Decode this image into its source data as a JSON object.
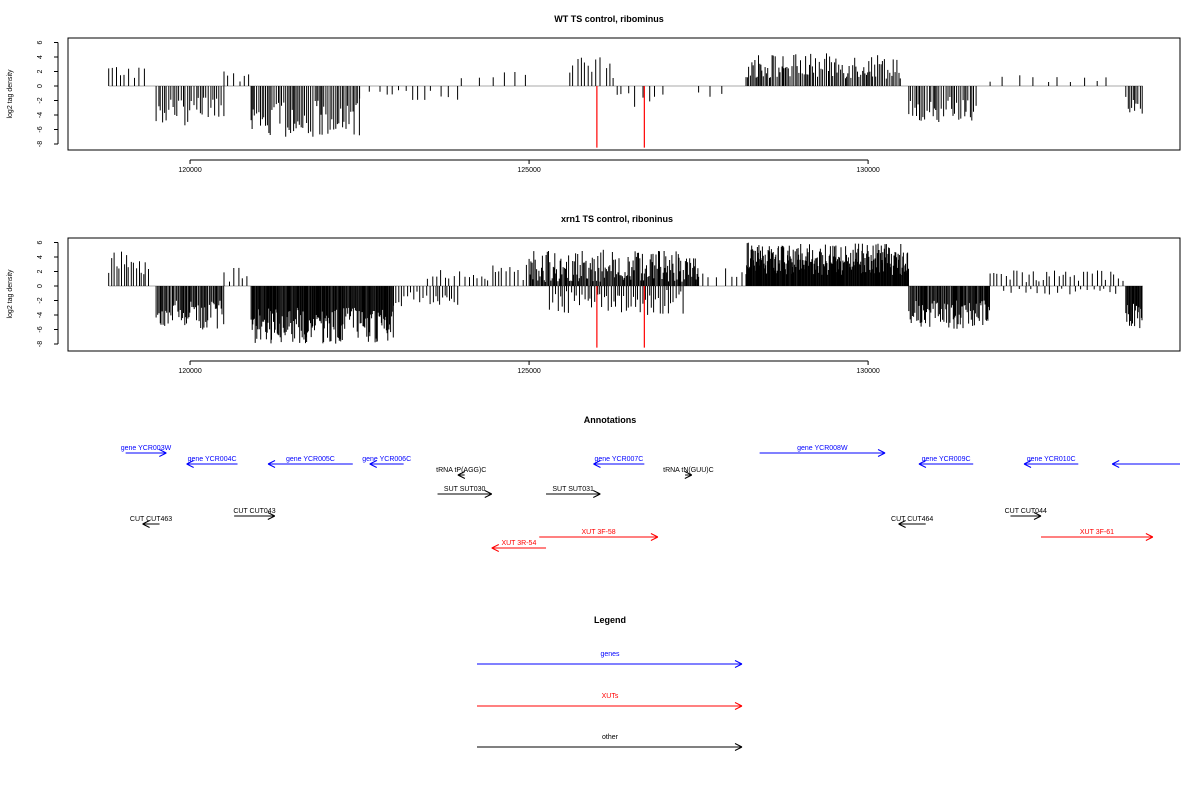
{
  "chart_data": [
    {
      "type": "bar",
      "title": "WT TS control, ribominus",
      "ylabel": "log2 tag density",
      "xlabel": "",
      "xlim": [
        118200,
        134600
      ],
      "ylim": [
        -9,
        6.5
      ],
      "x_ticks": [
        120000,
        125000,
        130000
      ],
      "x_tick_labels": [
        "120000",
        "125000",
        "130000"
      ],
      "y_ticks": [
        -8,
        -6,
        -4,
        -2,
        0,
        2,
        4,
        6
      ],
      "y_tick_labels": [
        "-8",
        "-6",
        "-4",
        "-2",
        "0",
        "2",
        "4",
        "6"
      ],
      "grid": false,
      "markers": [
        {
          "x": 126000,
          "value": -8.5,
          "color": "#ff0000"
        },
        {
          "x": 126700,
          "value": -8.5,
          "color": "#ff0000"
        }
      ],
      "segments": [
        {
          "from": 118800,
          "to": 119350,
          "min": 1,
          "max": 3,
          "dir": 1,
          "step": 70
        },
        {
          "from": 119500,
          "to": 120500,
          "min": 1.5,
          "max": 5.5,
          "dir": -1,
          "step": 30
        },
        {
          "from": 120500,
          "to": 120900,
          "min": 0.5,
          "max": 2,
          "dir": 1,
          "step": 80
        },
        {
          "from": 120900,
          "to": 122500,
          "min": 2,
          "max": 7,
          "dir": -1,
          "step": 25
        },
        {
          "from": 122500,
          "to": 124000,
          "min": 0.5,
          "max": 2,
          "dir": -1,
          "step": 120
        },
        {
          "from": 124000,
          "to": 125000,
          "min": 0.5,
          "max": 2,
          "dir": 1,
          "step": 200
        },
        {
          "from": 125600,
          "to": 126300,
          "min": 1,
          "max": 4,
          "dir": 1,
          "step": 70
        },
        {
          "from": 126300,
          "to": 127000,
          "min": 1,
          "max": 3,
          "dir": -1,
          "step": 90
        },
        {
          "from": 127500,
          "to": 128000,
          "min": 0.5,
          "max": 1.5,
          "dir": -1,
          "step": 160
        },
        {
          "from": 128200,
          "to": 130500,
          "min": 1,
          "max": 4.5,
          "dir": 1,
          "step": 22
        },
        {
          "from": 130600,
          "to": 131600,
          "min": 1.5,
          "max": 5,
          "dir": -1,
          "step": 28
        },
        {
          "from": 131800,
          "to": 133600,
          "min": 0.5,
          "max": 1.8,
          "dir": 1,
          "step": 190
        },
        {
          "from": 133800,
          "to": 134050,
          "min": 1.5,
          "max": 4,
          "dir": -1,
          "step": 30
        }
      ]
    },
    {
      "type": "bar",
      "title": "xrn1 TS control, riboninus",
      "ylabel": "log2 tag density",
      "xlabel": "",
      "xlim": [
        118200,
        134600
      ],
      "ylim": [
        -9,
        6.5
      ],
      "x_ticks": [
        120000,
        125000,
        130000
      ],
      "x_tick_labels": [
        "120000",
        "125000",
        "130000"
      ],
      "y_ticks": [
        -8,
        -6,
        -4,
        -2,
        0,
        2,
        4,
        6
      ],
      "y_tick_labels": [
        "-8",
        "-6",
        "-4",
        "-2",
        "0",
        "2",
        "4",
        "6"
      ],
      "grid": false,
      "markers": [
        {
          "x": 126000,
          "value": -8.5,
          "color": "#ff0000"
        },
        {
          "x": 126700,
          "value": -8.5,
          "color": "#ff0000"
        }
      ],
      "segments": [
        {
          "from": 118800,
          "to": 119400,
          "min": 1.5,
          "max": 4.8,
          "dir": 1,
          "step": 35
        },
        {
          "from": 119500,
          "to": 120500,
          "min": 2,
          "max": 6,
          "dir": -1,
          "step": 18
        },
        {
          "from": 120500,
          "to": 120900,
          "min": 0.5,
          "max": 2.5,
          "dir": 1,
          "step": 60
        },
        {
          "from": 120900,
          "to": 123000,
          "min": 3,
          "max": 8,
          "dir": -1,
          "step": 12
        },
        {
          "from": 123000,
          "to": 124000,
          "min": 0.5,
          "max": 3,
          "dir": -1,
          "step": 40
        },
        {
          "from": 123500,
          "to": 125000,
          "min": 0.5,
          "max": 3,
          "dir": 1,
          "step": 60
        },
        {
          "from": 125000,
          "to": 127500,
          "min": 0.5,
          "max": 5,
          "dir": 1,
          "step": 15
        },
        {
          "from": 125300,
          "to": 127300,
          "min": 0.5,
          "max": 4,
          "dir": -1,
          "step": 35
        },
        {
          "from": 127500,
          "to": 128200,
          "min": 0.5,
          "max": 2.5,
          "dir": 1,
          "step": 100
        },
        {
          "from": 128200,
          "to": 130600,
          "min": 1.5,
          "max": 6,
          "dir": 1,
          "step": 10
        },
        {
          "from": 130600,
          "to": 131800,
          "min": 2,
          "max": 6,
          "dir": -1,
          "step": 15
        },
        {
          "from": 131800,
          "to": 133800,
          "min": 0.5,
          "max": 2.2,
          "dir": 1,
          "step": 60
        },
        {
          "from": 132000,
          "to": 133700,
          "min": 0.3,
          "max": 1.2,
          "dir": -1,
          "step": 90
        },
        {
          "from": 133800,
          "to": 134050,
          "min": 2,
          "max": 6,
          "dir": -1,
          "step": 12
        }
      ]
    }
  ],
  "annotations": {
    "title": "Annotations",
    "items": [
      {
        "label": "gene YCR003W",
        "x1": 119050,
        "x2": 119650,
        "dir": "right",
        "row": 0,
        "color": "#0000ff"
      },
      {
        "label": "gene YCR004C",
        "x1": 119950,
        "x2": 120700,
        "dir": "left",
        "row": 1,
        "color": "#0000ff"
      },
      {
        "label": "gene YCR005C",
        "x1": 121150,
        "x2": 122400,
        "dir": "left",
        "row": 1,
        "color": "#0000ff"
      },
      {
        "label": "gene YCR006C",
        "x1": 122650,
        "x2": 123150,
        "dir": "left",
        "row": 1,
        "color": "#0000ff"
      },
      {
        "label": "tRNA tP(AGG)C",
        "x1": 123950,
        "x2": 124050,
        "dir": "left",
        "row": 2,
        "color": "#000000"
      },
      {
        "label": "SUT SUT030",
        "x1": 123650,
        "x2": 124450,
        "dir": "right",
        "row": 3,
        "color": "#000000"
      },
      {
        "label": "SUT SUT031",
        "x1": 125250,
        "x2": 126050,
        "dir": "right",
        "row": 3,
        "color": "#000000"
      },
      {
        "label": "gene YCR007C",
        "x1": 125950,
        "x2": 126700,
        "dir": "left",
        "row": 1,
        "color": "#0000ff"
      },
      {
        "label": "tRNA tN(GUU)C",
        "x1": 127300,
        "x2": 127400,
        "dir": "right",
        "row": 2,
        "color": "#000000"
      },
      {
        "label": "gene YCR008W",
        "x1": 128400,
        "x2": 130250,
        "dir": "right",
        "row": 0,
        "color": "#0000ff"
      },
      {
        "label": "gene YCR009C",
        "x1": 130750,
        "x2": 131550,
        "dir": "left",
        "row": 1,
        "color": "#0000ff"
      },
      {
        "label": "gene YCR010C",
        "x1": 132300,
        "x2": 133100,
        "dir": "left",
        "row": 1,
        "color": "#0000ff"
      },
      {
        "label": "",
        "x1": 133600,
        "x2": 134600,
        "dir": "left",
        "row": 1,
        "color": "#0000ff"
      },
      {
        "label": "CUT CUT463",
        "x1": 119300,
        "x2": 119550,
        "dir": "left",
        "row": 5,
        "color": "#000000"
      },
      {
        "label": "CUT CUT043",
        "x1": 120650,
        "x2": 121250,
        "dir": "right",
        "row": 4,
        "color": "#000000"
      },
      {
        "label": "CUT CUT464",
        "x1": 130450,
        "x2": 130850,
        "dir": "left",
        "row": 5,
        "color": "#000000"
      },
      {
        "label": "CUT CUT044",
        "x1": 132100,
        "x2": 132550,
        "dir": "right",
        "row": 4,
        "color": "#000000"
      },
      {
        "label": "XUT 3R-54",
        "x1": 124450,
        "x2": 125250,
        "dir": "left",
        "row": 7,
        "color": "#ff0000"
      },
      {
        "label": "XUT 3F-58",
        "x1": 125150,
        "x2": 126900,
        "dir": "right",
        "row": 6,
        "color": "#ff0000"
      },
      {
        "label": "XUT 3F-61",
        "x1": 132550,
        "x2": 134200,
        "dir": "right",
        "row": 6,
        "color": "#ff0000"
      }
    ]
  },
  "legend": {
    "title": "Legend",
    "items": [
      {
        "label": "genes",
        "color": "#0000ff"
      },
      {
        "label": "XUTs",
        "color": "#ff0000"
      },
      {
        "label": "other",
        "color": "#000000"
      }
    ]
  }
}
